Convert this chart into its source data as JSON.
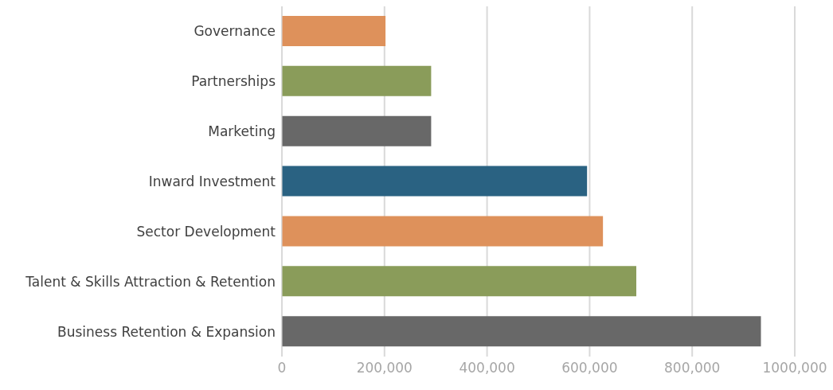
{
  "chart_data": {
    "type": "bar",
    "orientation": "horizontal",
    "categories": [
      "Governance",
      "Partnerships",
      "Marketing",
      "Inward Investment",
      "Sector Development",
      "Talent & Skills Attraction & Retention",
      "Business Retention & Expansion"
    ],
    "values": [
      202000,
      291000,
      291000,
      595000,
      626000,
      691000,
      934000
    ],
    "colors": [
      "#de915b",
      "#8a9c5a",
      "#686868",
      "#2a6282",
      "#de915b",
      "#8a9c5a",
      "#686868"
    ],
    "xlim": [
      0,
      1000000
    ],
    "xticks": [
      0,
      {
        "value": 200000,
        "label": "200,000"
      },
      {
        "value": 400000,
        "label": "400,000"
      },
      {
        "value": 600000,
        "label": "600,000"
      },
      {
        "value": 800000,
        "label": "800,000"
      },
      {
        "value": 1000000,
        "label": "1000,000"
      }
    ],
    "grid": "x",
    "legend": false
  }
}
